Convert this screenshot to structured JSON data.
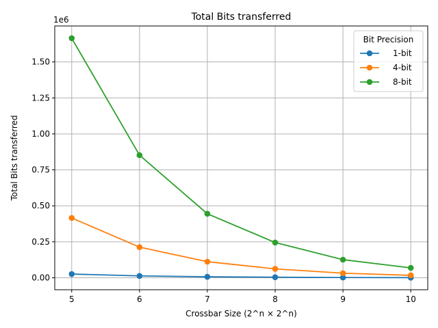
{
  "chart_data": {
    "type": "line",
    "title": "Total Bits transferred",
    "xlabel": "Crossbar Size (2^n × 2^n)",
    "ylabel": "Total Bits transferred",
    "y_offset_text": "1e6",
    "x": [
      5,
      6,
      7,
      8,
      9,
      10
    ],
    "xticks": [
      "5",
      "6",
      "7",
      "8",
      "9",
      "10"
    ],
    "yticks": [
      "0.00",
      "0.25",
      "0.50",
      "0.75",
      "1.00",
      "1.25",
      "1.50"
    ],
    "ytick_values": [
      0,
      250000,
      500000,
      750000,
      1000000,
      1250000,
      1500000
    ],
    "xlim": [
      4.75,
      10.25
    ],
    "ylim": [
      -83000,
      1750000
    ],
    "grid": true,
    "legend": {
      "title": "Bit Precision",
      "placement": "top-right"
    },
    "series": [
      {
        "name": "1-bit",
        "color": "#1f77b4",
        "values": [
          26000,
          13000,
          7000,
          4000,
          2000,
          1000
        ]
      },
      {
        "name": "4-bit",
        "color": "#ff7f0e",
        "values": [
          416000,
          213000,
          112000,
          62000,
          32000,
          17000
        ]
      },
      {
        "name": "8-bit",
        "color": "#2ca02c",
        "values": [
          1665000,
          852000,
          445000,
          245000,
          126000,
          69000
        ]
      }
    ]
  }
}
